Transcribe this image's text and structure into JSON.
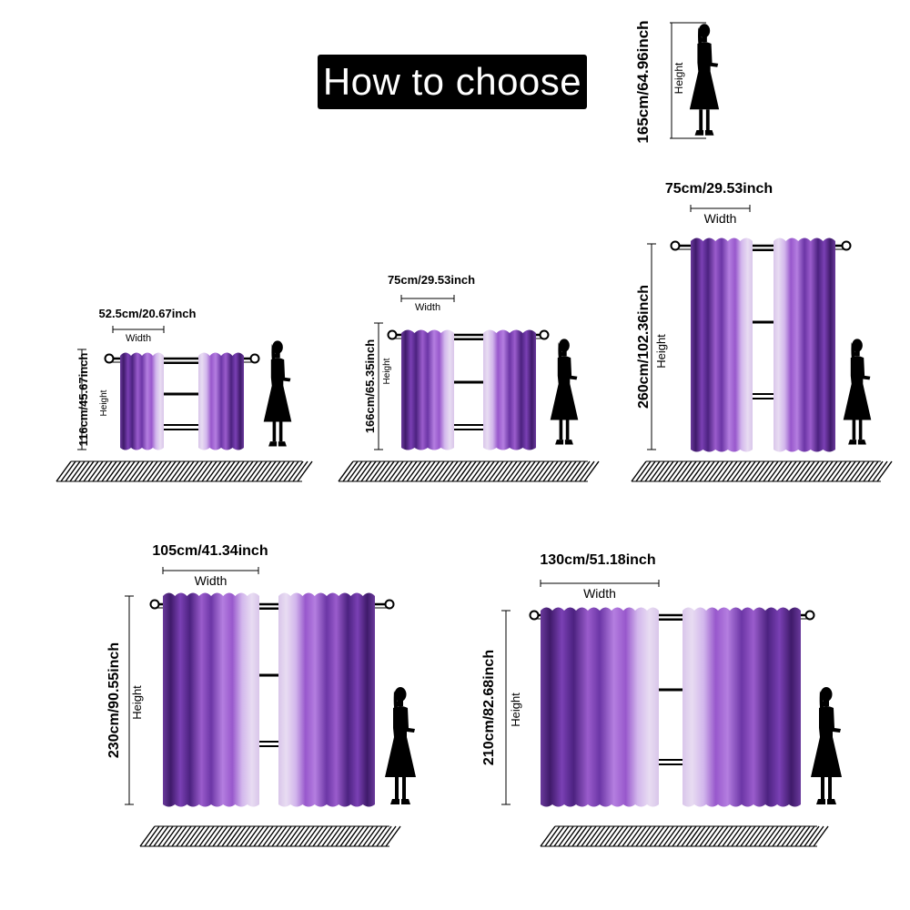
{
  "title": "How to choose",
  "colors": {
    "curtain_dark": "#4a1f78",
    "curtain_mid": "#8a4cc2",
    "curtain_light": "#c8a8e6",
    "curtain_pale": "#efe8f4",
    "line": "#000000"
  },
  "reference": {
    "height_text": "165cm/64.96inch",
    "height_label": "Height"
  },
  "panels": [
    {
      "width_text": "52.5cm/20.67inch",
      "width_label": "Width",
      "height_text": "116cm/45.67inch",
      "height_label": "Height"
    },
    {
      "width_text": "75cm/29.53inch",
      "width_label": "Width",
      "height_text": "166cm/65.35inch",
      "height_label": "Height"
    },
    {
      "width_text": "75cm/29.53inch",
      "width_label": "Width",
      "height_text": "260cm/102.36inch",
      "height_label": "Height"
    },
    {
      "width_text": "105cm/41.34inch",
      "width_label": "Width",
      "height_text": "230cm/90.55inch",
      "height_label": "Height"
    },
    {
      "width_text": "130cm/51.18inch",
      "width_label": "Width",
      "height_text": "210cm/82.68inch",
      "height_label": "Height"
    }
  ]
}
